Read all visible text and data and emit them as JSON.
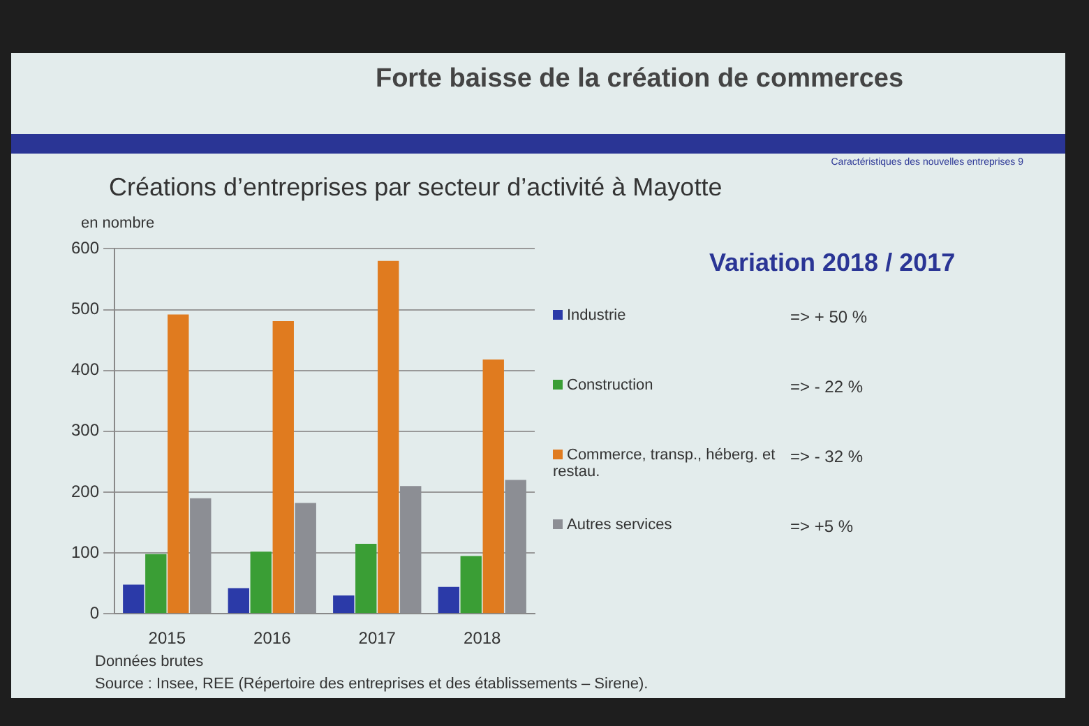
{
  "chart_data": {
    "type": "bar",
    "title": "Forte baisse de la création de commerces",
    "subtitle": "Créations d’entreprises par secteur d’activité à Mayotte",
    "ylabel": "en nombre",
    "categories": [
      "2015",
      "2016",
      "2017",
      "2018"
    ],
    "series": [
      {
        "name": "Industrie",
        "color": "#2b3aa8",
        "values": [
          48,
          42,
          30,
          44
        ]
      },
      {
        "name": "Construction",
        "color": "#3a9e35",
        "values": [
          98,
          102,
          115,
          95
        ]
      },
      {
        "name": "Commerce, transp., héberg. et restau.",
        "color": "#e07b1f",
        "values": [
          492,
          481,
          580,
          418
        ]
      },
      {
        "name": "Autres services",
        "color": "#8c8e94",
        "values": [
          190,
          182,
          210,
          220
        ]
      }
    ],
    "ylim": [
      0,
      600
    ],
    "yticks": [
      0,
      100,
      200,
      300,
      400,
      500,
      600
    ],
    "grid": "y",
    "legend": "right",
    "annotations": [
      "Variation 2018 / 2017",
      "=> + 50 %",
      "=> - 22 %",
      "=> - 32 %",
      "=> +5 %",
      "Caractéristiques des nouvelles entreprises   9",
      "Données brutes",
      "Source : Insee, REE (Répertoire des entreprises et des établissements – Sirene)."
    ]
  }
}
